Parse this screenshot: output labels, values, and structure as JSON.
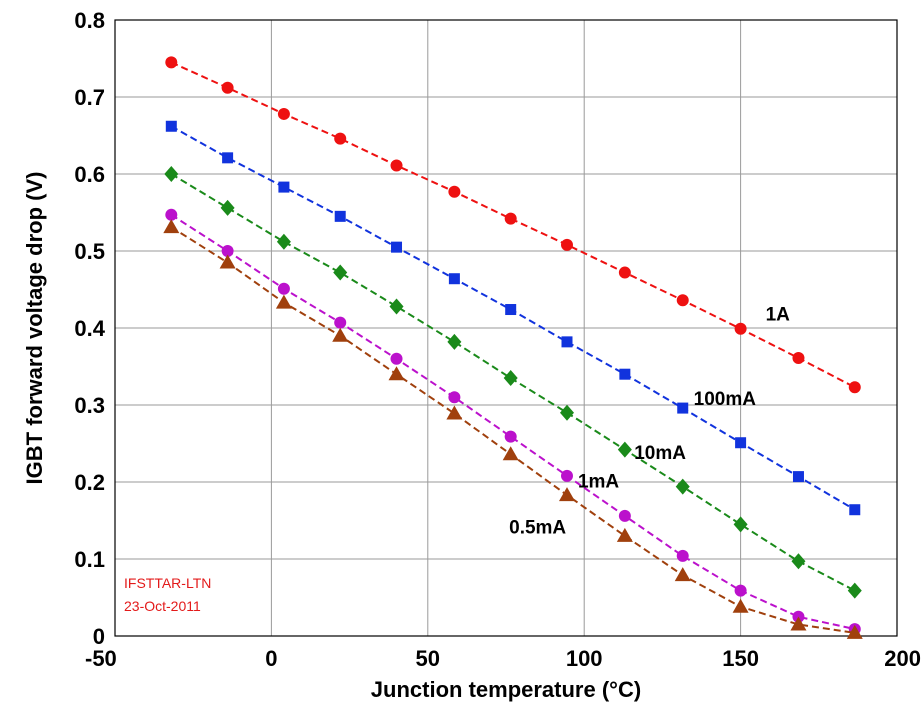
{
  "chart_data": {
    "type": "line",
    "xlabel": "Junction temperature (°C)",
    "ylabel": "IGBT forward voltage drop  (V)",
    "xlim": [
      -50,
      200
    ],
    "ylim": [
      0,
      0.8
    ],
    "x_ticks": [
      "-50",
      "0",
      "50",
      "100",
      "150",
      "200"
    ],
    "y_ticks": [
      "0",
      "0.1",
      "0.2",
      "0.3",
      "0.4",
      "0.5",
      "0.6",
      "0.7",
      "0.8"
    ],
    "grid": true,
    "line_style": "dashed",
    "x": [
      -32,
      -14,
      4,
      22,
      40,
      58.5,
      76.5,
      94.5,
      113,
      131.5,
      150,
      168.5,
      186.5
    ],
    "series": [
      {
        "name": "1A",
        "color": "#ff0000",
        "marker": "circle",
        "values": [
          0.745,
          0.712,
          0.678,
          0.646,
          0.611,
          0.577,
          0.542,
          0.508,
          0.472,
          0.436,
          0.399,
          0.361,
          0.323
        ],
        "label_at": [
          158,
          0.41
        ]
      },
      {
        "name": "100mA",
        "color": "#0000ff",
        "marker": "square",
        "values": [
          0.662,
          0.621,
          0.583,
          0.545,
          0.505,
          0.464,
          0.424,
          0.382,
          0.34,
          0.296,
          0.251,
          0.207,
          0.164
        ],
        "label_at": [
          135,
          0.3
        ]
      },
      {
        "name": "10mA",
        "color": "#008000",
        "marker": "diamond",
        "values": [
          0.6,
          0.556,
          0.512,
          0.472,
          0.428,
          0.382,
          0.335,
          0.29,
          0.242,
          0.194,
          0.145,
          0.097,
          0.059
        ],
        "label_at": [
          116,
          0.23
        ]
      },
      {
        "name": "1mA",
        "color": "#cc00cc",
        "marker": "circle",
        "values": [
          0.547,
          0.5,
          0.451,
          0.407,
          0.36,
          0.31,
          0.259,
          0.208,
          0.156,
          0.104,
          0.059,
          0.025,
          0.009
        ],
        "label_at": [
          98,
          0.193
        ]
      },
      {
        "name": "0.5mA",
        "color": "#a0400d",
        "marker": "triangle",
        "values": [
          0.531,
          0.485,
          0.433,
          0.39,
          0.34,
          0.289,
          0.236,
          0.183,
          0.13,
          0.079,
          0.038,
          0.015,
          0.004
        ],
        "label_at": [
          76,
          0.133
        ]
      }
    ],
    "annotations": [
      {
        "text": "IFSTTAR-LTN",
        "color": "#e31a1a"
      },
      {
        "text": "23-Oct-2011",
        "color": "#e31a1a"
      }
    ]
  }
}
